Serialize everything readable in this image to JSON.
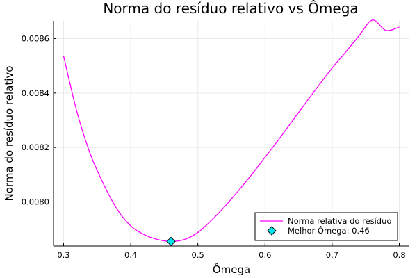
{
  "chart_data": {
    "type": "line",
    "title": "Norma do resíduo relativo vs Ômega",
    "xlabel": "Ômega",
    "ylabel": "Norma do resíduo relativo",
    "xlim": [
      0.285,
      0.815
    ],
    "ylim": [
      0.007838,
      0.008665
    ],
    "xticks": [
      0.3,
      0.4,
      0.5,
      0.6,
      0.7,
      0.8
    ],
    "xtick_labels": [
      "0.3",
      "0.4",
      "0.5",
      "0.6",
      "0.7",
      "0.8"
    ],
    "yticks": [
      0.008,
      0.0082,
      0.0084,
      0.0086
    ],
    "ytick_labels": [
      "0.0080",
      "0.0082",
      "0.0084",
      "0.0086"
    ],
    "grid": true,
    "legend_position": "bottom-right",
    "series": [
      {
        "name": "Norma relativa do resíduo",
        "color": "#ff00ff",
        "x": [
          0.3,
          0.32,
          0.34,
          0.36,
          0.38,
          0.4,
          0.42,
          0.44,
          0.46,
          0.48,
          0.5,
          0.52,
          0.54,
          0.56,
          0.58,
          0.6,
          0.62,
          0.64,
          0.66,
          0.68,
          0.7,
          0.72,
          0.74,
          0.76,
          0.78,
          0.8
        ],
        "y": [
          0.008536,
          0.00833,
          0.008175,
          0.008063,
          0.007972,
          0.007912,
          0.00788,
          0.007862,
          0.007855,
          0.007862,
          0.007888,
          0.007932,
          0.007983,
          0.00804,
          0.0081,
          0.008164,
          0.008228,
          0.008295,
          0.008362,
          0.008428,
          0.008492,
          0.00855,
          0.00861,
          0.008668,
          0.00863,
          0.008642
        ]
      },
      {
        "name": "Melhor Ômega: 0.46",
        "type": "scatter",
        "marker": "diamond",
        "color": "#00e5ee",
        "x": [
          0.46
        ],
        "y": [
          0.007855
        ]
      }
    ]
  }
}
